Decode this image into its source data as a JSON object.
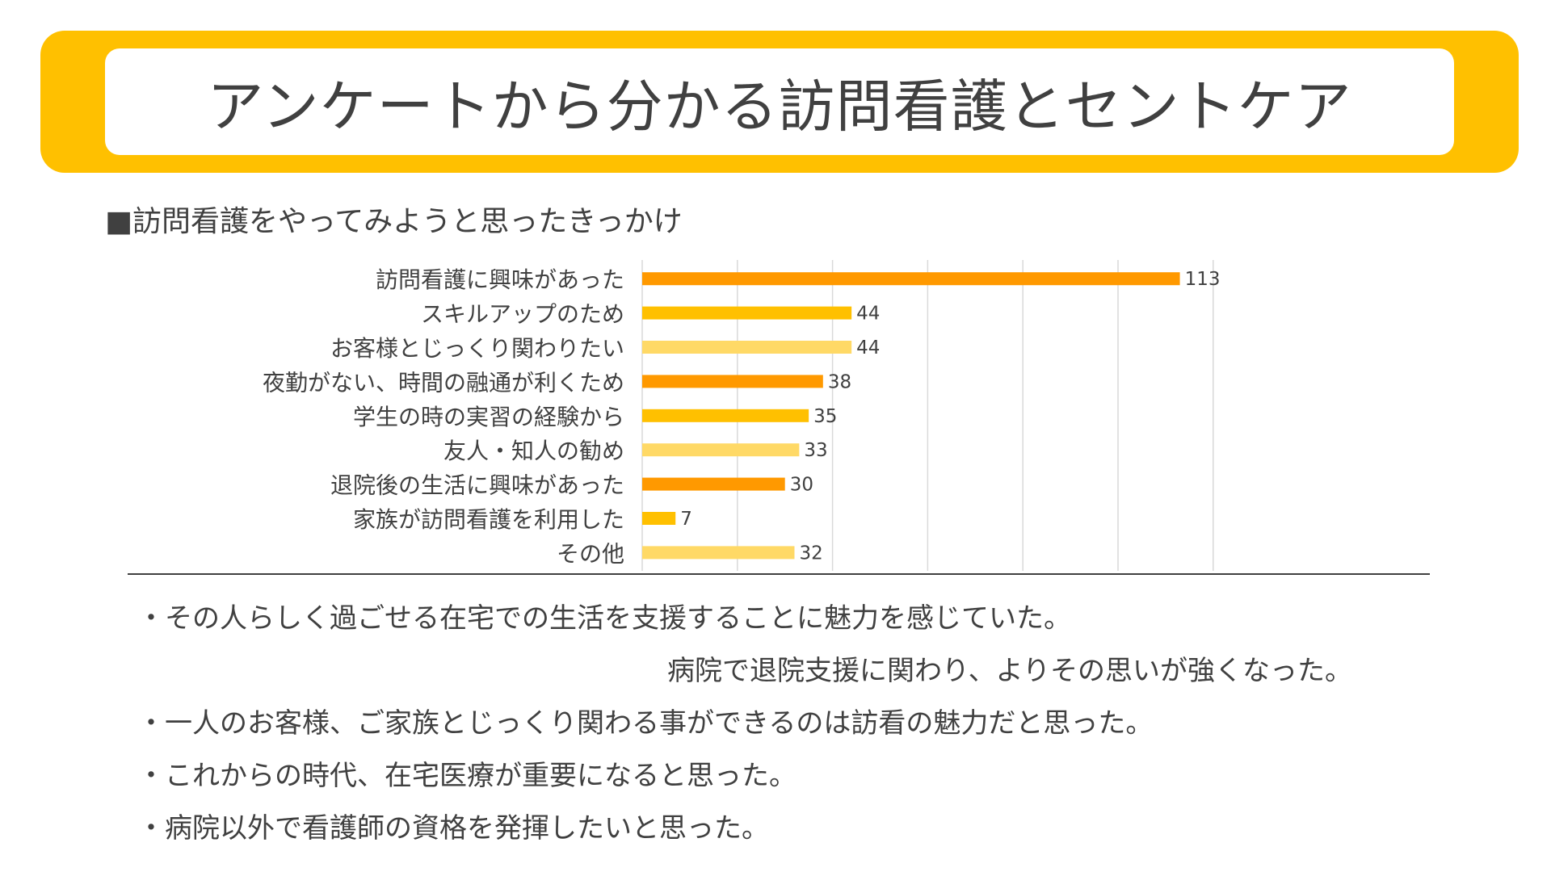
{
  "title": "アンケートから分かる訪問看護とセントケア",
  "section_heading": "■訪問看護をやってみようと思ったきっかけ",
  "colors": {
    "banner": "#FFC000",
    "bar_dark": "#FF9900",
    "bar_mid": "#FFC000",
    "bar_light": "#FFD966",
    "text": "#404040",
    "grid": "#d9d9d9"
  },
  "chart_data": {
    "type": "bar",
    "orientation": "horizontal",
    "title": "■訪問看護をやってみようと思ったきっかけ",
    "categories": [
      "訪問看護に興味があった",
      "スキルアップのため",
      "お客様とじっくり関わりたい",
      "夜勤がない、時間の融通が利くため",
      "学生の時の実習の経験から",
      "友人・知人の勧め",
      "退院後の生活に興味があった",
      "家族が訪問看護を利用した",
      "その他"
    ],
    "values": [
      113,
      44,
      44,
      38,
      35,
      33,
      30,
      7,
      32
    ],
    "value_labels": [
      "113",
      "44",
      "44",
      "38",
      "35",
      "33",
      "30",
      "7",
      "32"
    ],
    "bar_colors": [
      "#FF9900",
      "#FFC000",
      "#FFD966",
      "#FF9900",
      "#FFC000",
      "#FFD966",
      "#FF9900",
      "#FFC000",
      "#FFD966"
    ],
    "xlim": [
      0,
      120
    ],
    "grid": true,
    "xlabel": "",
    "ylabel": ""
  },
  "comments": [
    "・その人らしく過ごせる在宅での生活を支援することに魅力を感じていた。",
    "病院で退院支援に関わり、よりその思いが強くなった。",
    "・一人のお客様、ご家族とじっくり関わる事ができるのは訪看の魅力だと思った。",
    "・これからの時代、在宅医療が重要になると思った。",
    "・病院以外で看護師の資格を発揮したいと思った。"
  ]
}
